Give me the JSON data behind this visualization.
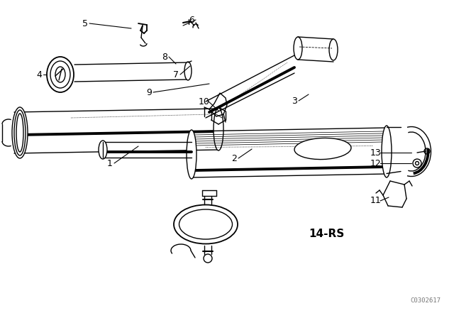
{
  "background_color": "#ffffff",
  "line_color": "#000000",
  "label_color": "#000000",
  "part_label_fontsize": 9,
  "code_text": "C0302617",
  "series_text": "14-RS",
  "figsize": [
    6.4,
    4.48
  ],
  "dpi": 100
}
